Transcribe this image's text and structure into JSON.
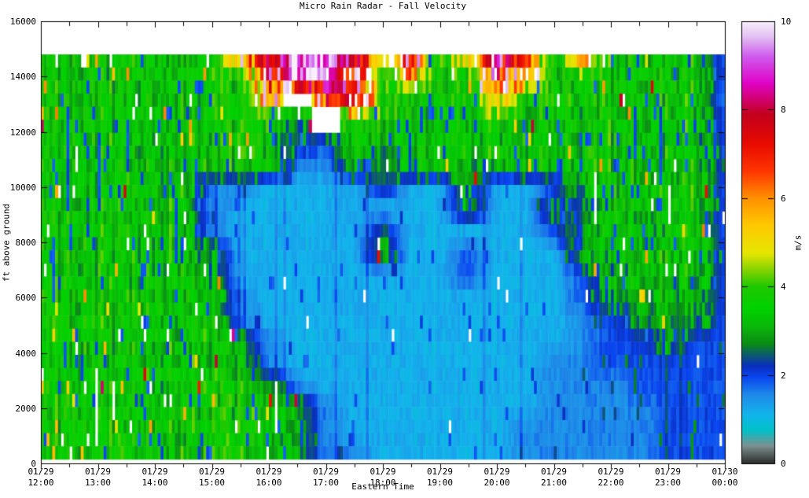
{
  "title": "Micro Rain Radar - Fall Velocity",
  "chart_data": {
    "type": "heatmap",
    "title": "Micro Rain Radar - Fall Velocity",
    "xlabel": "Eastern Time",
    "ylabel": "ft above ground",
    "colorbar_label": "m/s",
    "background_color": "#ffffff",
    "axis_color": "#000000",
    "x_range_hours": [
      12,
      24
    ],
    "y_range_ft": [
      0,
      16000
    ],
    "colorbar_range": [
      0,
      10
    ],
    "y_ticks": [
      0,
      2000,
      4000,
      6000,
      8000,
      10000,
      12000,
      14000,
      16000
    ],
    "colorbar_ticks": [
      0,
      2,
      4,
      6,
      8,
      10
    ],
    "x_ticks": [
      {
        "date": "01/29",
        "time": "12:00"
      },
      {
        "date": "01/29",
        "time": "13:00"
      },
      {
        "date": "01/29",
        "time": "14:00"
      },
      {
        "date": "01/29",
        "time": "15:00"
      },
      {
        "date": "01/29",
        "time": "16:00"
      },
      {
        "date": "01/29",
        "time": "17:00"
      },
      {
        "date": "01/29",
        "time": "18:00"
      },
      {
        "date": "01/29",
        "time": "19:00"
      },
      {
        "date": "01/29",
        "time": "20:00"
      },
      {
        "date": "01/29",
        "time": "21:00"
      },
      {
        "date": "01/29",
        "time": "22:00"
      },
      {
        "date": "01/29",
        "time": "23:00"
      },
      {
        "date": "01/30",
        "time": "00:00"
      }
    ],
    "colormap_stops": [
      [
        0.0,
        "#2e2e2e"
      ],
      [
        0.4,
        "#7c9090"
      ],
      [
        0.75,
        "#00c2c8"
      ],
      [
        1.1,
        "#12b4ec"
      ],
      [
        1.55,
        "#1f8ae8"
      ],
      [
        1.95,
        "#0a46f0"
      ],
      [
        2.2,
        "#0a2fbe"
      ],
      [
        2.45,
        "#0c5a70"
      ],
      [
        2.7,
        "#0a8c14"
      ],
      [
        3.1,
        "#0ab80a"
      ],
      [
        3.5,
        "#00d200"
      ],
      [
        4.0,
        "#20c800"
      ],
      [
        4.35,
        "#7ed200"
      ],
      [
        4.75,
        "#e6e600"
      ],
      [
        5.4,
        "#ffc800"
      ],
      [
        6.0,
        "#ff9000"
      ],
      [
        6.6,
        "#ff3700"
      ],
      [
        7.2,
        "#ea0c00"
      ],
      [
        7.9,
        "#c3001e"
      ],
      [
        8.6,
        "#e104c8"
      ],
      [
        9.2,
        "#cf5aee"
      ],
      [
        9.65,
        "#e3c0f2"
      ],
      [
        10.0,
        "#f8f0fb"
      ]
    ],
    "grid": {
      "comment": "fall velocity m/s, coarse field: cols = 30-min steps 12:00->24:00, rows = 800 ft bins from 14800 ft (top) to 0 ft",
      "t_start_hour": 12.0,
      "t_step_hours": 0.5,
      "alt_top_ft": 14800,
      "row_height_ft": 800,
      "value_codes": {
        "1": 1.15,
        "2": 1.55,
        "3": 1.95,
        "4": 2.45,
        "5": 3.0,
        "6": 3.45,
        "7": 4.2,
        "8": 5.0,
        "9": 6.0,
        "R": 7.0,
        "D": 7.9,
        "M": 8.8,
        "W": 9.7,
        ".": null
      },
      "rows": [
        "66666669DMWD9R69DR6966663",
        "66666666RWMR6966R96666663",
        "666666669.RM6666966666662",
        "6666666665.66666666666663",
        "6666666664365666666666663",
        "6666666662254665666666663",
        "6666662211114115113566663",
        "6666662111111115115366663",
        "6666662111114111113565663",
        "6666665111115113111556663",
        "6666665111111113111356563",
        "6666666211111111111355653",
        "6666666211111111111235553",
        "6666666521111111111233533",
        "6666666521111111112233333",
        "6666666652111111112223333",
        "6666666665211111112222333",
        "6666666665211111122222333",
        "6666666665221111122222333"
      ]
    },
    "render": {
      "seed": 1290124,
      "stripes": 240,
      "cells": 31,
      "data_top_ft": 14800,
      "data_bottom_ft": 150
    }
  }
}
